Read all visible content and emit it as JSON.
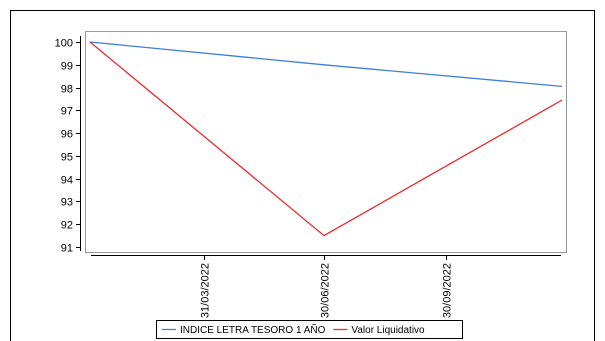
{
  "chart_data": {
    "type": "line",
    "title": "",
    "xlabel": "",
    "ylabel": "",
    "x_range": [
      "2022-01-01",
      "2022-12-30"
    ],
    "ylim": [
      91,
      100.4
    ],
    "y_ticks": [
      91,
      92,
      93,
      94,
      95,
      96,
      97,
      98,
      99,
      100
    ],
    "x_ticks": [
      {
        "date": "2022-03-31",
        "label": "31/03/2022"
      },
      {
        "date": "2022-06-30",
        "label": "30/06/2022"
      },
      {
        "date": "2022-09-30",
        "label": "30/09/2022"
      }
    ],
    "grid": false,
    "legend_position": "bottom-center",
    "series": [
      {
        "name": "INDICE LETRA TESORO 1 AÑO",
        "color": "#3d7fe0",
        "points": [
          {
            "x": "2022-01-04",
            "y": 100
          },
          {
            "x": "2022-06-30",
            "y": 99.0
          },
          {
            "x": "2022-12-27",
            "y": 98.05
          }
        ]
      },
      {
        "name": "Valor Liquidativo",
        "color": "#ee2a2a",
        "points": [
          {
            "x": "2022-01-04",
            "y": 100
          },
          {
            "x": "2022-06-30",
            "y": 91.5
          },
          {
            "x": "2022-12-27",
            "y": 97.45
          }
        ]
      }
    ]
  }
}
